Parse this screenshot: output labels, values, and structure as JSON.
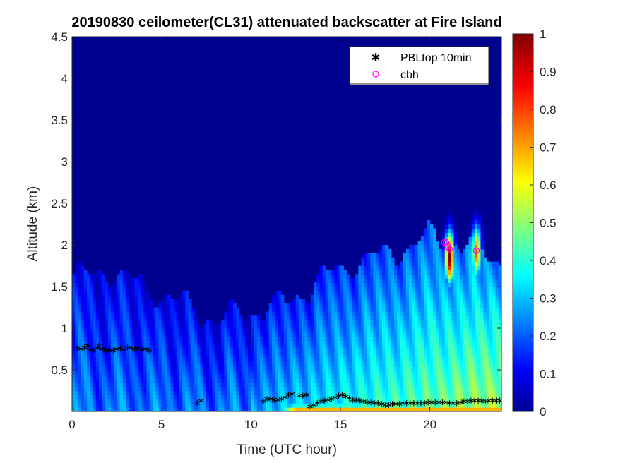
{
  "chart_data": {
    "type": "heatmap",
    "title": "20190830 ceilometer(CL31) attenuated backscatter at Fire Island",
    "xlabel": "Time (UTC hour)",
    "ylabel": "Altitude (km)",
    "xlim": [
      0,
      24
    ],
    "ylim": [
      0,
      4.5
    ],
    "xticks": [
      0,
      5,
      10,
      15,
      20
    ],
    "yticks": [
      0.5,
      1,
      1.5,
      2,
      2.5,
      3,
      3.5,
      4,
      4.5
    ],
    "colorbar": {
      "range": [
        0,
        1
      ],
      "ticks": [
        0,
        0.1,
        0.2,
        0.3,
        0.4,
        0.5,
        0.6,
        0.7,
        0.8,
        0.9,
        1
      ],
      "colormap": "jet"
    },
    "legend": {
      "position": "top-right",
      "entries": [
        {
          "label": "PBLtop 10min",
          "marker": "asterisk",
          "color": "#000000"
        },
        {
          "label": "cbh",
          "marker": "circle",
          "color": "#ff00ff"
        }
      ]
    },
    "series": [
      {
        "name": "PBLtop 10min",
        "x": [
          0.3,
          0.5,
          0.7,
          0.9,
          1.0,
          1.2,
          1.4,
          1.5,
          1.7,
          1.9,
          2.1,
          2.3,
          2.5,
          2.7,
          2.9,
          3.1,
          3.3,
          3.5,
          3.7,
          3.9,
          4.1,
          4.3,
          7.0,
          7.2,
          10.7,
          10.9,
          11.1,
          11.3,
          11.5,
          11.7,
          11.9,
          12.1,
          12.3,
          12.7,
          12.9,
          13.1,
          13.3,
          13.5,
          13.7,
          13.9,
          14.1,
          14.3,
          14.5,
          14.7,
          14.9,
          15.1,
          15.3,
          15.5,
          15.7,
          15.9,
          16.1,
          16.3,
          16.5,
          16.7,
          16.9,
          17.1,
          17.3,
          17.5,
          17.7,
          17.9,
          18.1,
          18.3,
          18.5,
          18.7,
          18.9,
          19.1,
          19.3,
          19.5,
          19.7,
          19.9,
          20.1,
          20.3,
          20.5,
          20.7,
          20.9,
          21.1,
          21.3,
          21.5,
          21.7,
          21.9,
          22.1,
          22.3,
          22.5,
          22.7,
          22.9,
          23.1,
          23.3,
          23.5,
          23.7,
          23.9
        ],
        "y": [
          0.76,
          0.75,
          0.77,
          0.79,
          0.74,
          0.73,
          0.76,
          0.79,
          0.75,
          0.73,
          0.74,
          0.73,
          0.75,
          0.76,
          0.74,
          0.77,
          0.76,
          0.75,
          0.76,
          0.74,
          0.75,
          0.73,
          0.1,
          0.13,
          0.12,
          0.15,
          0.15,
          0.14,
          0.14,
          0.15,
          0.17,
          0.2,
          0.21,
          0.19,
          0.19,
          0.2,
          0.06,
          0.08,
          0.1,
          0.12,
          0.13,
          0.14,
          0.15,
          0.17,
          0.19,
          0.2,
          0.18,
          0.16,
          0.14,
          0.14,
          0.13,
          0.12,
          0.11,
          0.11,
          0.1,
          0.1,
          0.09,
          0.08,
          0.08,
          0.09,
          0.09,
          0.09,
          0.1,
          0.1,
          0.1,
          0.1,
          0.1,
          0.1,
          0.1,
          0.11,
          0.11,
          0.11,
          0.11,
          0.11,
          0.11,
          0.1,
          0.1,
          0.1,
          0.11,
          0.12,
          0.12,
          0.13,
          0.13,
          0.13,
          0.13,
          0.12,
          0.13,
          0.13,
          0.13,
          0.13
        ]
      },
      {
        "name": "cbh",
        "x": [
          20.8,
          20.9,
          21.0,
          21.1,
          22.6
        ],
        "y": [
          2.03,
          2.03,
          1.98,
          1.95,
          1.93
        ]
      }
    ],
    "field_description_points": {
      "base_layer_top_km": [
        [
          0,
          1.6
        ],
        [
          2,
          1.7
        ],
        [
          4,
          1.5
        ],
        [
          6,
          1.3
        ],
        [
          8,
          1.1
        ],
        [
          10,
          1.2
        ],
        [
          12,
          1.3
        ],
        [
          14,
          1.6
        ],
        [
          16,
          1.8
        ],
        [
          18,
          1.9
        ],
        [
          20,
          2.1
        ],
        [
          22,
          2.0
        ],
        [
          24,
          1.8
        ]
      ],
      "cloud_cores": [
        {
          "time": 21.1,
          "altitude_km": 1.85,
          "value": 1.0
        },
        {
          "time": 22.6,
          "altitude_km": 1.92,
          "value": 0.8
        }
      ],
      "surface_peak": {
        "time_range": [
          11,
          24
        ],
        "altitude_km": 0.05,
        "value": 0.85
      }
    }
  }
}
